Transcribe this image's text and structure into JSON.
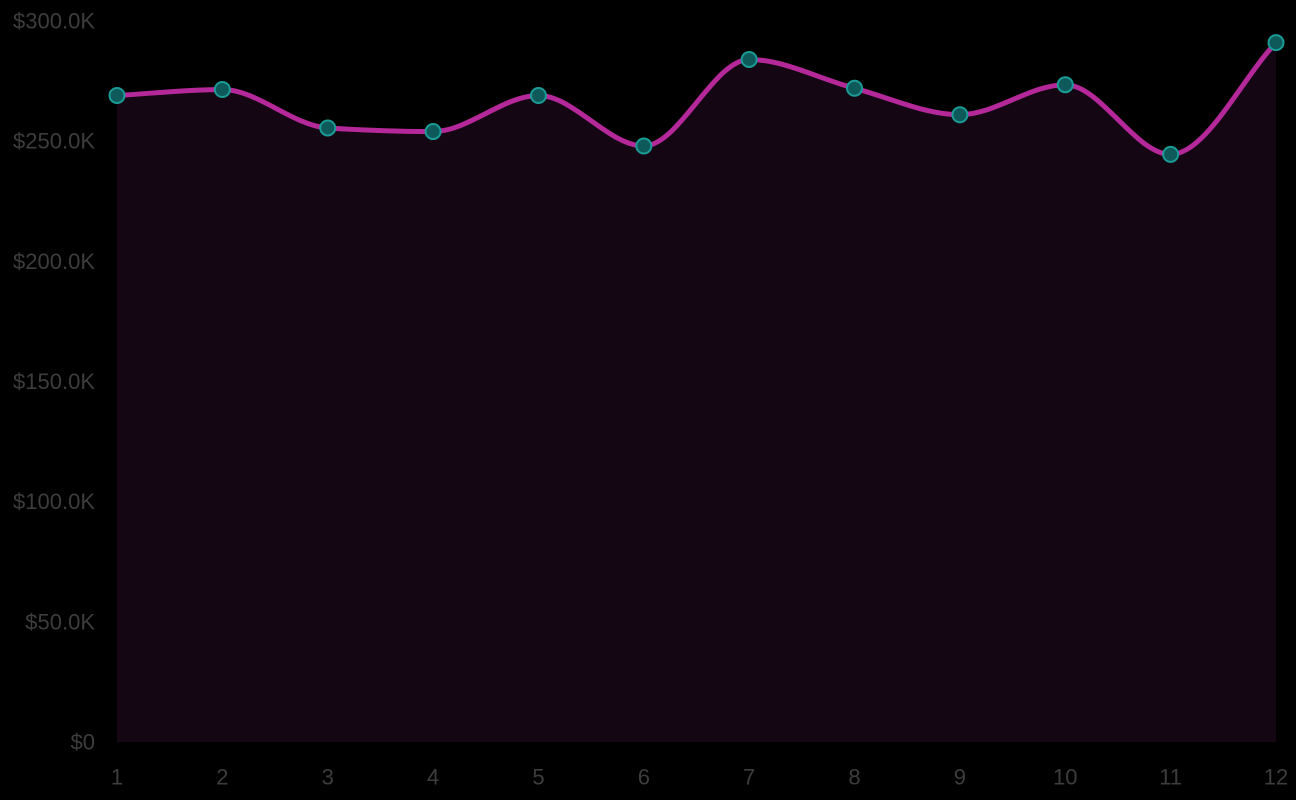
{
  "chart_data": {
    "type": "area",
    "title": "",
    "xlabel": "",
    "ylabel": "",
    "categories": [
      "1",
      "2",
      "3",
      "4",
      "5",
      "6",
      "7",
      "8",
      "9",
      "10",
      "11",
      "12"
    ],
    "series": [
      {
        "values": [
          269000,
          271500,
          255500,
          254000,
          269000,
          248000,
          284000,
          272000,
          261000,
          273500,
          244500,
          291000
        ]
      }
    ],
    "ylim": [
      0,
      300000
    ],
    "yticks": [
      0,
      50000,
      100000,
      150000,
      200000,
      250000,
      300000
    ],
    "ytick_labels": [
      "$0",
      "$50.0K",
      "$100.0K",
      "$150.0K",
      "$200.0K",
      "$250.0K",
      "$300.0K"
    ],
    "grid": false,
    "legend": "none",
    "colors": {
      "background": "#000000",
      "line": "#b5289a",
      "area_fill": "#140613",
      "marker_fill": "#0e5a5a",
      "marker_stroke": "#1a9b96",
      "tick_text": "#3d3d3d"
    }
  }
}
